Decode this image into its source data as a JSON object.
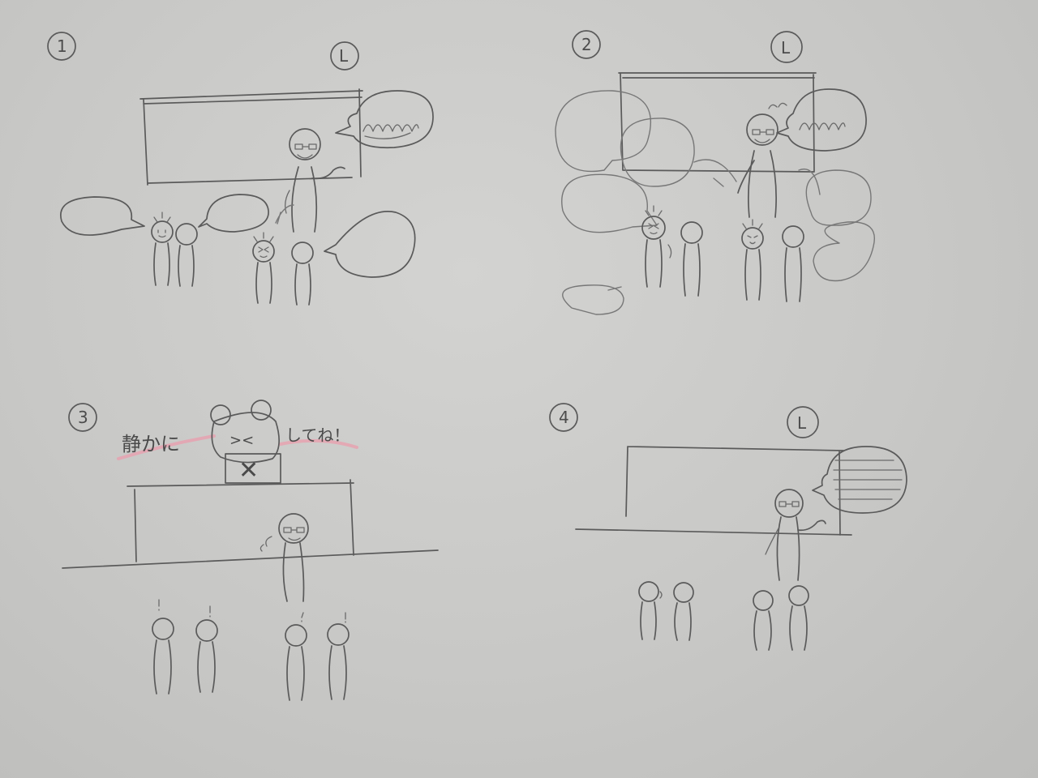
{
  "panels": [
    {
      "number": "1",
      "clock_glyph": "L"
    },
    {
      "number": "2",
      "clock_glyph": "L"
    },
    {
      "number": "3"
    },
    {
      "number": "4",
      "clock_glyph": "L"
    }
  ],
  "panel3": {
    "caption_left": "静かに",
    "caption_right": "してね！",
    "bear_face": "><",
    "sign_mark": "✕"
  },
  "colors": {
    "pencil": "#5a5a5a",
    "highlighter": "#e6a2b0",
    "paper": "#c9c9c7"
  }
}
